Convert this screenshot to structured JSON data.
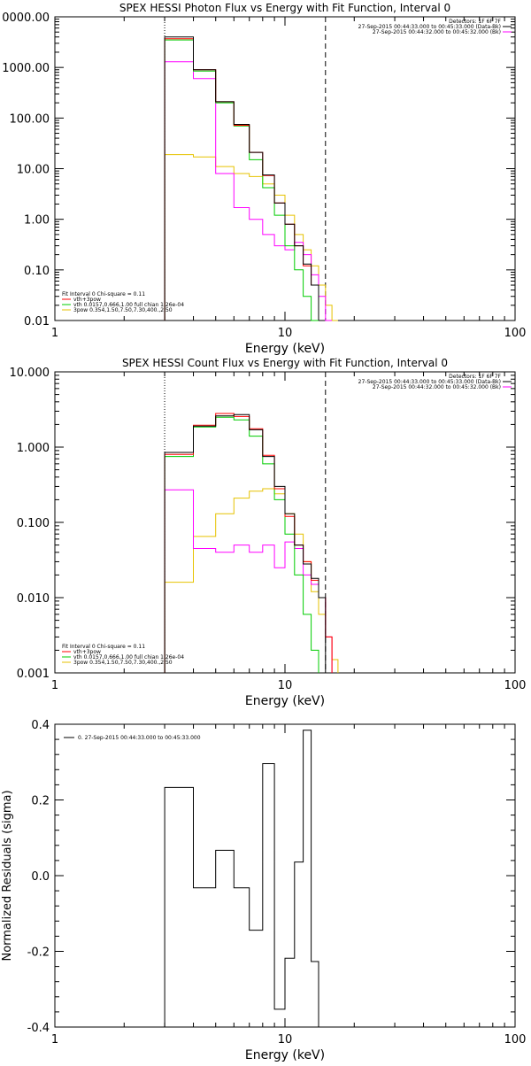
{
  "chart_data": [
    {
      "type": "line",
      "title": "SPEX HESSI Photon Flux vs Energy with Fit Function, Interval 0",
      "xlabel": "Energy (keV)",
      "ylabel": "",
      "xscale": "log",
      "yscale": "log",
      "xlim": [
        1,
        100
      ],
      "ylim": [
        0.01,
        10000
      ],
      "x_ticks": [
        "1",
        "10",
        "100"
      ],
      "y_ticks": [
        "0.01",
        "0.10",
        "1.00",
        "10.00",
        "100.00",
        "1000.00",
        "0000.00"
      ],
      "vlines": {
        "dotted": 3.0,
        "dashed": 15.0
      },
      "bin_edges": [
        3,
        4,
        5,
        6,
        7,
        8,
        9,
        10,
        11,
        12,
        13,
        14,
        15,
        16,
        17,
        18
      ],
      "info": [
        "Detectors: 1F 6F 7F",
        "27-Sep-2015 00:44:33.000 to 00:45:33.000 (Data-Bk)",
        "27-Sep-2015 00:44:32.000 to 00:45:32.000 (Bk)"
      ],
      "fit_legend": [
        "Fit Interval 0   Chi-square = 0.11",
        "vth+3pow",
        "vth 0.0157,0.666,1.00  full chian 1.26e-04",
        "3pow 0.354,1.50,7.50,7.30,400.,2.50"
      ],
      "series": [
        {
          "name": "Data-Bk",
          "color": "#000000",
          "values": [
            4000,
            900,
            210,
            75,
            21,
            7.5,
            2.1,
            0.8,
            0.3,
            0.13,
            0.05,
            null,
            null,
            null,
            null
          ]
        },
        {
          "name": "vth+3pow",
          "color": "#ff0000",
          "values": [
            3700,
            900,
            210,
            72,
            21,
            7.3,
            2.1,
            0.8,
            0.3,
            0.12,
            0.05,
            null,
            null,
            null,
            null
          ]
        },
        {
          "name": "vth",
          "color": "#00cc00",
          "values": [
            3500,
            850,
            200,
            70,
            15,
            4.2,
            1.2,
            0.3,
            0.1,
            0.03,
            0.01,
            null,
            null,
            null,
            null
          ]
        },
        {
          "name": "3pow",
          "color": "#ff00ff",
          "values": [
            1300,
            600,
            8,
            1.7,
            1.0,
            0.5,
            0.3,
            0.25,
            0.35,
            0.2,
            0.08,
            0.03,
            0.01,
            null,
            null
          ]
        },
        {
          "name": "3pow",
          "color": "#e6c200",
          "values": [
            19,
            17,
            11,
            8,
            7,
            5,
            3.0,
            1.2,
            0.5,
            0.25,
            0.12,
            0.05,
            0.02,
            0.01,
            null
          ]
        }
      ]
    },
    {
      "type": "line",
      "title": "SPEX HESSI Count Flux vs Energy with Fit Function, Interval 0",
      "xlabel": "Energy (keV)",
      "ylabel": "",
      "xscale": "log",
      "yscale": "log",
      "xlim": [
        1,
        100
      ],
      "ylim": [
        0.001,
        10
      ],
      "x_ticks": [
        "1",
        "10",
        "100"
      ],
      "y_ticks": [
        "0.001",
        "0.010",
        "0.100",
        "1.000",
        "10.000"
      ],
      "vlines": {
        "dotted": 3.0,
        "dashed": 15.0
      },
      "bin_edges": [
        3,
        4,
        5,
        6,
        7,
        8,
        9,
        10,
        11,
        12,
        13,
        14,
        15,
        16,
        17,
        18
      ],
      "info": [
        "Detectors: 1F 6F 7F",
        "27-Sep-2015 00:44:33.000 to 00:45:33.000 (Data-Bk)",
        "27-Sep-2015 00:44:32.000 to 00:45:32.000 (Bk)"
      ],
      "fit_legend": [
        "Fit Interval 0   Chi-square = 0.11",
        "vth+3pow",
        "vth 0.0157,0.666,1.00  full chian 1.26e-04",
        "3pow 0.354,1.50,7.50,7.30,400.,2.50"
      ],
      "series": [
        {
          "name": "Data-Bk",
          "color": "#000000",
          "values": [
            0.85,
            1.9,
            2.6,
            2.7,
            1.7,
            0.75,
            0.3,
            0.13,
            0.05,
            0.028,
            0.018,
            0.01,
            null,
            null,
            null
          ]
        },
        {
          "name": "vth+3pow",
          "color": "#ff0000",
          "values": [
            0.8,
            1.95,
            2.8,
            2.55,
            1.75,
            0.78,
            0.28,
            0.12,
            0.05,
            0.03,
            0.017,
            0.01,
            0.003,
            null,
            null
          ]
        },
        {
          "name": "vth",
          "color": "#00cc00",
          "values": [
            0.75,
            1.85,
            2.5,
            2.3,
            1.4,
            0.6,
            0.2,
            0.07,
            0.02,
            0.006,
            0.002,
            null,
            null,
            null,
            null
          ]
        },
        {
          "name": "3pow",
          "color": "#ff00ff",
          "values": [
            0.27,
            0.045,
            0.04,
            0.05,
            0.04,
            0.05,
            0.025,
            0.055,
            0.045,
            0.02,
            0.015,
            0.01,
            0.003,
            null,
            null
          ]
        },
        {
          "name": "3pow",
          "color": "#e6c200",
          "values": [
            0.016,
            0.065,
            0.13,
            0.21,
            0.26,
            0.28,
            0.24,
            0.13,
            0.07,
            0.03,
            0.012,
            0.006,
            0.003,
            0.0015,
            null
          ]
        }
      ]
    },
    {
      "type": "line",
      "title": "",
      "xlabel": "Energy (keV)",
      "ylabel": "Normalized Residuals (sigma)",
      "xscale": "log",
      "yscale": "linear",
      "xlim": [
        1,
        100
      ],
      "ylim": [
        -0.4,
        0.4
      ],
      "x_ticks": [
        "1",
        "10",
        "100"
      ],
      "y_ticks": [
        "-0.4",
        "-0.2",
        "0.0",
        "0.2",
        "0.4"
      ],
      "bin_edges": [
        3,
        4,
        5,
        6,
        7,
        8,
        9,
        10,
        11,
        12,
        13,
        14,
        15
      ],
      "info": [
        "0. 27-Sep-2015 00:44:33.000 to 00:45:33.000"
      ],
      "series": [
        {
          "name": "0. 27-Sep-2015 00:44:33.000 to 00:45:33.000",
          "color": "#000000",
          "values": [
            0.233,
            -0.032,
            0.067,
            -0.032,
            -0.144,
            0.296,
            -0.353,
            -0.218,
            0.036,
            0.384,
            -0.227,
            null
          ]
        }
      ]
    }
  ]
}
